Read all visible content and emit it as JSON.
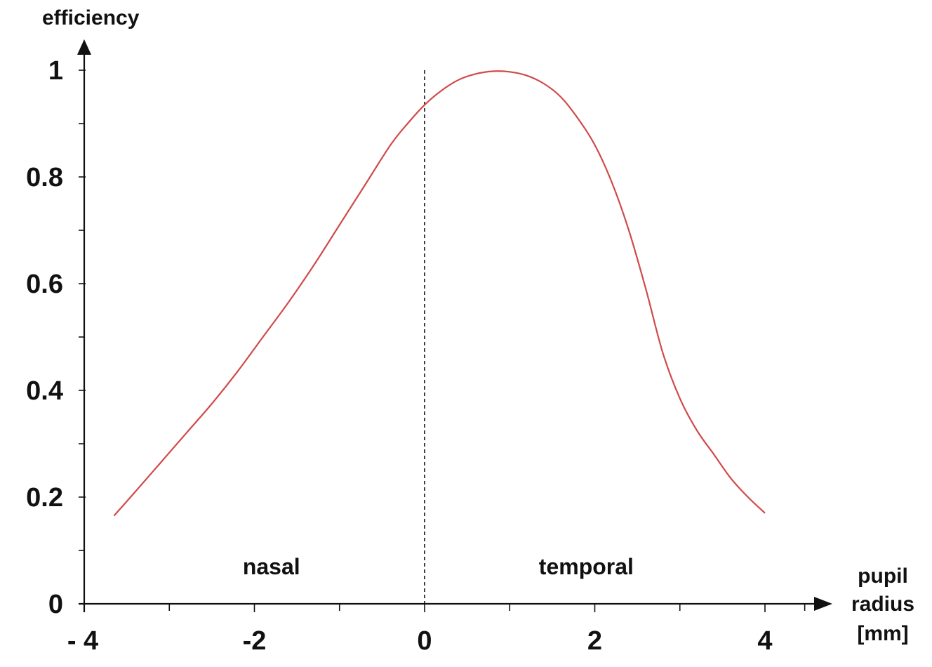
{
  "chart_data": {
    "type": "line",
    "ylabel": "efficiency",
    "xlabel_lines": [
      "pupil",
      "radius",
      "[mm]"
    ],
    "xlim": [
      -4,
      4.5
    ],
    "ylim": [
      0,
      1
    ],
    "x_ticks": [
      -4,
      -2,
      0,
      2,
      4
    ],
    "x_tick_labels": [
      "- 4",
      "-2",
      "0",
      "2",
      "4"
    ],
    "x_minor_ticks": [
      -3,
      -1,
      1,
      3
    ],
    "y_ticks": [
      0,
      0.2,
      0.4,
      0.6,
      0.8,
      1
    ],
    "y_tick_labels": [
      "0",
      "0.2",
      "0.4",
      "0.6",
      "0.8",
      "1"
    ],
    "y_minor_ticks": [
      0.1,
      0.3,
      0.5,
      0.7,
      0.9
    ],
    "grid": false,
    "divider_x": 0,
    "annotations": [
      {
        "text": "nasal",
        "x": -1.8,
        "y": 0.07
      },
      {
        "text": "temporal",
        "x": 1.9,
        "y": 0.07
      }
    ],
    "series": [
      {
        "color": "#d04a4a",
        "x": [
          -3.65,
          -3.4,
          -3.1,
          -2.8,
          -2.5,
          -2.2,
          -1.9,
          -1.6,
          -1.3,
          -1.0,
          -0.7,
          -0.4,
          -0.2,
          0.0,
          0.2,
          0.4,
          0.6,
          0.8,
          1.0,
          1.2,
          1.4,
          1.6,
          1.8,
          2.0,
          2.2,
          2.4,
          2.6,
          2.8,
          3.0,
          3.2,
          3.4,
          3.6,
          3.8,
          4.0
        ],
        "y": [
          0.165,
          0.21,
          0.265,
          0.32,
          0.375,
          0.435,
          0.5,
          0.565,
          0.635,
          0.71,
          0.785,
          0.86,
          0.9,
          0.935,
          0.962,
          0.982,
          0.993,
          0.998,
          0.997,
          0.99,
          0.975,
          0.95,
          0.91,
          0.86,
          0.79,
          0.7,
          0.59,
          0.47,
          0.385,
          0.325,
          0.28,
          0.235,
          0.2,
          0.17
        ]
      }
    ]
  }
}
